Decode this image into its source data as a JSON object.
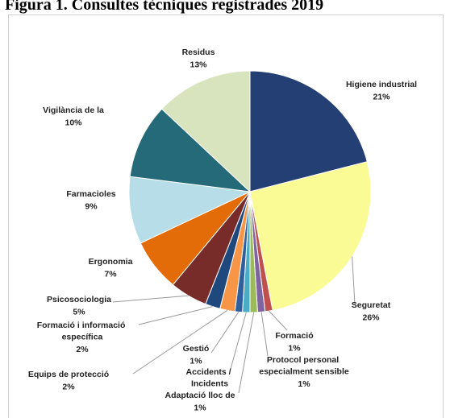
{
  "chart_data": {
    "type": "pie",
    "title": "Figura 1. Consultes tècniques registrades 2019",
    "categories": [
      "Higiene industrial",
      "Seguretat",
      "Formació",
      "Protocol personal especialment sensible",
      "Adaptació lloc de treball",
      "Accidents / Incidents",
      "Gestió",
      "Equips de protecció",
      "Formació i informació específica",
      "Psicosociologia",
      "Ergonomia",
      "Farmacioles",
      "Vigilància de la Salut",
      "Residus"
    ],
    "values": [
      21,
      26,
      1,
      1,
      1,
      1,
      1,
      2,
      2,
      5,
      7,
      9,
      10,
      13
    ],
    "value_labels": [
      "21%",
      "26%",
      "1%",
      "1%",
      "1%",
      "",
      "1%",
      "2%",
      "2%",
      "5%",
      "7%",
      "9%",
      "10%",
      "13%"
    ],
    "colors": [
      "#243f74",
      "#fbfb96",
      "#c0504d",
      "#8064a2",
      "#9bbb59",
      "#4bacc6",
      "#2f5f9f",
      "#f79646",
      "#1f497d",
      "#772c2a",
      "#e36c09",
      "#b7dee8",
      "#256a78",
      "#d7e4bd"
    ]
  }
}
